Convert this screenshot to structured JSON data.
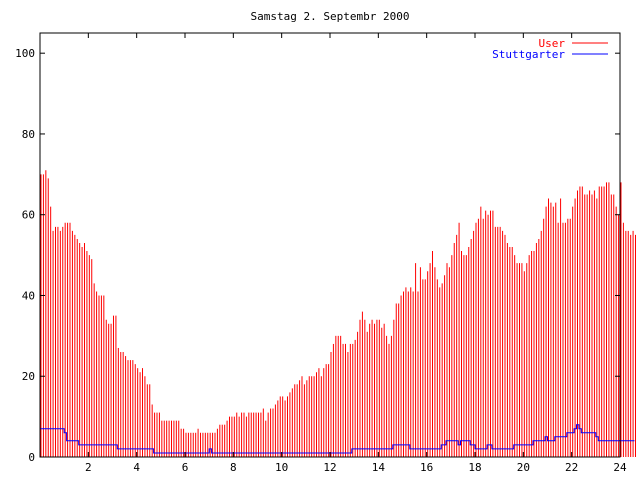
{
  "chart_data": {
    "type": "bar",
    "title": "Samstag 2. Septembr 2000",
    "xlabel": "",
    "ylabel": "",
    "xlim": [
      0,
      24
    ],
    "ylim": [
      0,
      105
    ],
    "grid": false,
    "legend_position": "top-right",
    "x_ticks": [
      2,
      4,
      6,
      8,
      10,
      12,
      14,
      16,
      18,
      20,
      22,
      24
    ],
    "y_ticks": [
      0,
      20,
      40,
      60,
      80,
      100
    ],
    "x_step_hours": 0.1,
    "series": [
      {
        "name": "User",
        "style": "impulses",
        "color": "#ff0000",
        "values": [
          70,
          70,
          71,
          69,
          62,
          56,
          57,
          57,
          56,
          57,
          58,
          58,
          58,
          56,
          55,
          54,
          53,
          52,
          53,
          51,
          50,
          49,
          43,
          41,
          40,
          40,
          40,
          34,
          33,
          33,
          35,
          35,
          27,
          26,
          26,
          25,
          24,
          24,
          24,
          23,
          22,
          21,
          22,
          20,
          18,
          18,
          13,
          11,
          11,
          11,
          9,
          9,
          9,
          9,
          9,
          9,
          9,
          9,
          7,
          7,
          6,
          6,
          6,
          6,
          6,
          7,
          6,
          6,
          6,
          6,
          6,
          6,
          6,
          7,
          8,
          8,
          8,
          9,
          10,
          10,
          10,
          11,
          10,
          11,
          11,
          10,
          11,
          11,
          11,
          11,
          11,
          11,
          12,
          9,
          11,
          12,
          12,
          13,
          14,
          15,
          15,
          14,
          15,
          16,
          17,
          18,
          18,
          19,
          20,
          18,
          19,
          20,
          20,
          20,
          21,
          22,
          20,
          22,
          23,
          23,
          26,
          28,
          30,
          30,
          30,
          28,
          28,
          26,
          28,
          28,
          29,
          31,
          34,
          36,
          34,
          31,
          33,
          34,
          33,
          34,
          34,
          32,
          33,
          30,
          28,
          30,
          34,
          38,
          38,
          40,
          41,
          42,
          41,
          42,
          41,
          48,
          41,
          47,
          44,
          44,
          46,
          48,
          51,
          47,
          44,
          42,
          43,
          45,
          48,
          47,
          50,
          53,
          55,
          58,
          51,
          50,
          50,
          52,
          54,
          56,
          58,
          59,
          62,
          59,
          61,
          60,
          61,
          61,
          57,
          57,
          57,
          56,
          55,
          53,
          52,
          52,
          50,
          48,
          48,
          48,
          46,
          48,
          50,
          51,
          51,
          53,
          54,
          56,
          59,
          62,
          64,
          63,
          62,
          63,
          58,
          64,
          58,
          58,
          59,
          59,
          62,
          64,
          66,
          67,
          67,
          65,
          65,
          66,
          65,
          66,
          64,
          67,
          67,
          67,
          68,
          68,
          65,
          65,
          62,
          60,
          68,
          58,
          56,
          56,
          55,
          56,
          55
        ]
      },
      {
        "name": "Stuttgarter",
        "style": "lines",
        "color": "#0000ff",
        "values": [
          7,
          7,
          7,
          7,
          7,
          7,
          7,
          7,
          7,
          7,
          6,
          4,
          4,
          4,
          4,
          4,
          3,
          3,
          3,
          3,
          3,
          3,
          3,
          3,
          3,
          3,
          3,
          3,
          3,
          3,
          3,
          3,
          2,
          2,
          2,
          2,
          2,
          2,
          2,
          2,
          2,
          2,
          2,
          2,
          2,
          2,
          2,
          1,
          1,
          1,
          1,
          1,
          1,
          1,
          1,
          1,
          1,
          1,
          1,
          1,
          1,
          1,
          1,
          1,
          1,
          1,
          1,
          1,
          1,
          1,
          2,
          1,
          1,
          1,
          1,
          1,
          1,
          1,
          1,
          1,
          1,
          1,
          1,
          1,
          1,
          1,
          1,
          1,
          1,
          1,
          1,
          1,
          1,
          1,
          1,
          1,
          1,
          1,
          1,
          1,
          1,
          1,
          1,
          1,
          1,
          1,
          1,
          1,
          1,
          1,
          1,
          1,
          1,
          1,
          1,
          1,
          1,
          1,
          1,
          1,
          1,
          1,
          1,
          1,
          1,
          1,
          1,
          1,
          1,
          2,
          2,
          2,
          2,
          2,
          2,
          2,
          2,
          2,
          2,
          2,
          2,
          2,
          2,
          2,
          2,
          2,
          3,
          3,
          3,
          3,
          3,
          3,
          3,
          2,
          2,
          2,
          2,
          2,
          2,
          2,
          2,
          2,
          2,
          2,
          2,
          2,
          3,
          3,
          4,
          4,
          4,
          4,
          4,
          3,
          4,
          4,
          4,
          4,
          3,
          3,
          2,
          2,
          2,
          2,
          2,
          3,
          3,
          2,
          2,
          2,
          2,
          2,
          2,
          2,
          2,
          2,
          3,
          3,
          3,
          3,
          3,
          3,
          3,
          3,
          4,
          4,
          4,
          4,
          4,
          5,
          4,
          4,
          4,
          5,
          5,
          5,
          5,
          5,
          6,
          6,
          6,
          7,
          8,
          7,
          6,
          6,
          6,
          6,
          6,
          6,
          5,
          4,
          4,
          4,
          4,
          4,
          4,
          4,
          4,
          4,
          4,
          4,
          4,
          4,
          4,
          4
        ]
      }
    ]
  }
}
